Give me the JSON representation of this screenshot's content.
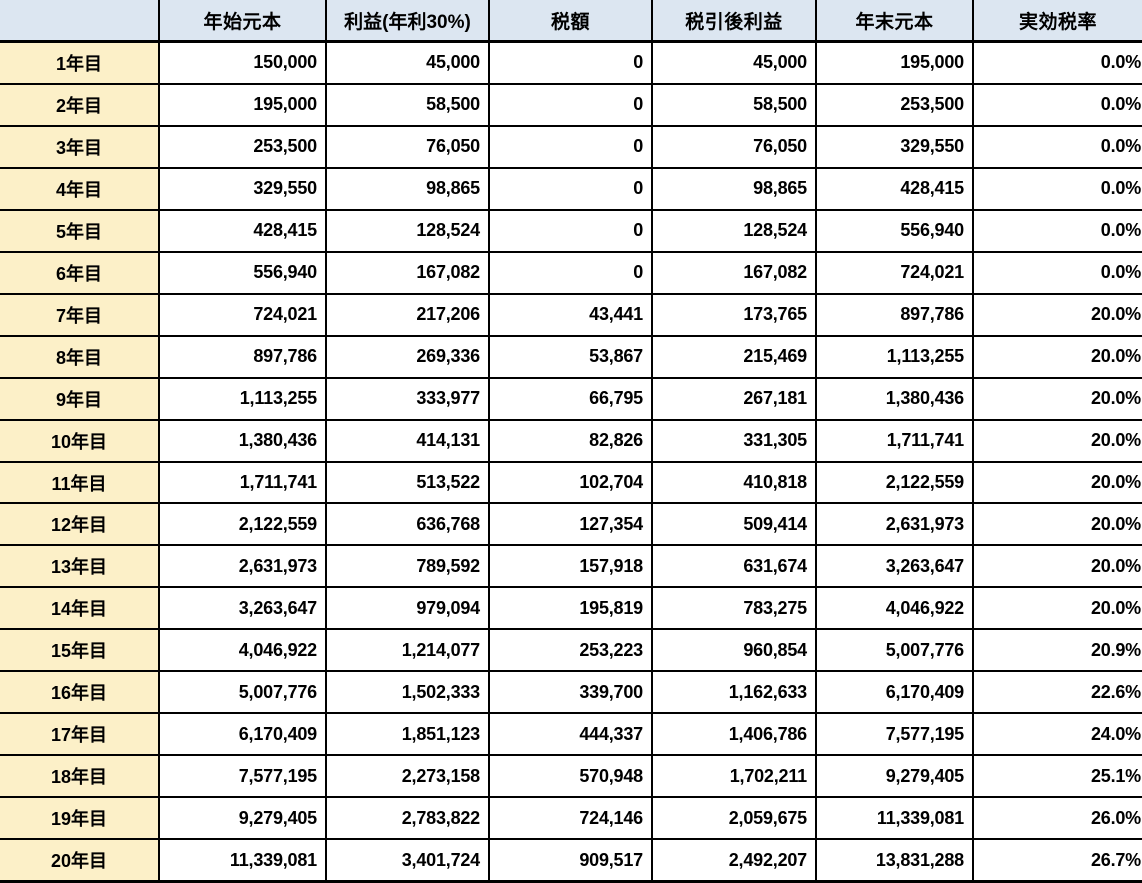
{
  "table": {
    "columns": [
      "",
      "年始元本",
      "利益(年利30%)",
      "税額",
      "税引後利益",
      "年末元本",
      "実効税率"
    ],
    "rows": [
      {
        "label": "1年目",
        "values": [
          "150,000",
          "45,000",
          "0",
          "45,000",
          "195,000",
          "0.0%"
        ]
      },
      {
        "label": "2年目",
        "values": [
          "195,000",
          "58,500",
          "0",
          "58,500",
          "253,500",
          "0.0%"
        ]
      },
      {
        "label": "3年目",
        "values": [
          "253,500",
          "76,050",
          "0",
          "76,050",
          "329,550",
          "0.0%"
        ]
      },
      {
        "label": "4年目",
        "values": [
          "329,550",
          "98,865",
          "0",
          "98,865",
          "428,415",
          "0.0%"
        ]
      },
      {
        "label": "5年目",
        "values": [
          "428,415",
          "128,524",
          "0",
          "128,524",
          "556,940",
          "0.0%"
        ]
      },
      {
        "label": "6年目",
        "values": [
          "556,940",
          "167,082",
          "0",
          "167,082",
          "724,021",
          "0.0%"
        ]
      },
      {
        "label": "7年目",
        "values": [
          "724,021",
          "217,206",
          "43,441",
          "173,765",
          "897,786",
          "20.0%"
        ]
      },
      {
        "label": "8年目",
        "values": [
          "897,786",
          "269,336",
          "53,867",
          "215,469",
          "1,113,255",
          "20.0%"
        ]
      },
      {
        "label": "9年目",
        "values": [
          "1,113,255",
          "333,977",
          "66,795",
          "267,181",
          "1,380,436",
          "20.0%"
        ]
      },
      {
        "label": "10年目",
        "values": [
          "1,380,436",
          "414,131",
          "82,826",
          "331,305",
          "1,711,741",
          "20.0%"
        ]
      },
      {
        "label": "11年目",
        "values": [
          "1,711,741",
          "513,522",
          "102,704",
          "410,818",
          "2,122,559",
          "20.0%"
        ]
      },
      {
        "label": "12年目",
        "values": [
          "2,122,559",
          "636,768",
          "127,354",
          "509,414",
          "2,631,973",
          "20.0%"
        ]
      },
      {
        "label": "13年目",
        "values": [
          "2,631,973",
          "789,592",
          "157,918",
          "631,674",
          "3,263,647",
          "20.0%"
        ]
      },
      {
        "label": "14年目",
        "values": [
          "3,263,647",
          "979,094",
          "195,819",
          "783,275",
          "4,046,922",
          "20.0%"
        ]
      },
      {
        "label": "15年目",
        "values": [
          "4,046,922",
          "1,214,077",
          "253,223",
          "960,854",
          "5,007,776",
          "20.9%"
        ]
      },
      {
        "label": "16年目",
        "values": [
          "5,007,776",
          "1,502,333",
          "339,700",
          "1,162,633",
          "6,170,409",
          "22.6%"
        ]
      },
      {
        "label": "17年目",
        "values": [
          "6,170,409",
          "1,851,123",
          "444,337",
          "1,406,786",
          "7,577,195",
          "24.0%"
        ]
      },
      {
        "label": "18年目",
        "values": [
          "7,577,195",
          "2,273,158",
          "570,948",
          "1,702,211",
          "9,279,405",
          "25.1%"
        ]
      },
      {
        "label": "19年目",
        "values": [
          "9,279,405",
          "2,783,822",
          "724,146",
          "2,059,675",
          "11,339,081",
          "26.0%"
        ]
      },
      {
        "label": "20年目",
        "values": [
          "11,339,081",
          "3,401,724",
          "909,517",
          "2,492,207",
          "13,831,288",
          "26.7%"
        ]
      }
    ]
  },
  "colors": {
    "header_bg": "#dce6f1",
    "row_label_bg": "#fcf0c8",
    "cell_bg": "#ffffff",
    "border": "#000000",
    "text": "#000000"
  }
}
